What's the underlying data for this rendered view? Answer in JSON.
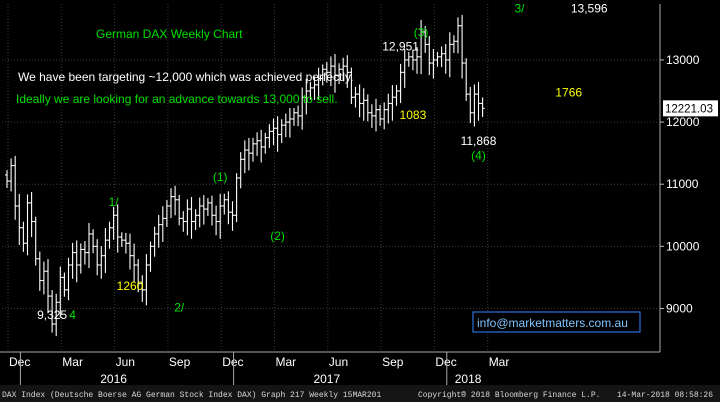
{
  "chart_data": {
    "type": "bar",
    "subtype": "ohlc",
    "frequency": "Weekly",
    "title": "German DAX Weekly Chart",
    "commentary": [
      "We have been targeting ~12,000 which was achieved perfectly.",
      "Ideally we are looking for an advance towards 13,000 to sell."
    ],
    "ylim": [
      8300,
      13900
    ],
    "y_ticks": [
      9000,
      10000,
      11000,
      12000,
      13000
    ],
    "y_tick_labels": [
      "9000",
      "10000",
      "11000",
      "12000",
      "13000"
    ],
    "x_ticks": [
      "Dec",
      "Mar",
      "Jun",
      "Sep",
      "Dec",
      "Mar",
      "Jun",
      "Sep",
      "Dec",
      "Mar"
    ],
    "years": [
      "2016",
      "2017",
      "2018"
    ],
    "last_price": "12221.03",
    "weeks": 117,
    "series": [
      {
        "name": "DAX Index",
        "values": [
          11050,
          11300,
          10650,
          10300,
          10050,
          10700,
          10400,
          9800,
          9450,
          9600,
          9200,
          8750,
          9100,
          9500,
          9300,
          9700,
          9900,
          9700,
          9950,
          9900,
          10200,
          10000,
          9700,
          9850,
          10100,
          10300,
          10500,
          10150,
          10100,
          10050,
          9850,
          9700,
          9400,
          9300,
          9700,
          10000,
          10200,
          10350,
          10450,
          10650,
          10800,
          10750,
          10450,
          10400,
          10600,
          10400,
          10500,
          10650,
          10600,
          10700,
          10500,
          10400,
          10650,
          10750,
          10550,
          10500,
          11100,
          11400,
          11550,
          11500,
          11650,
          11700,
          11600,
          11750,
          11850,
          11900,
          11800,
          11950,
          12000,
          12050,
          12150,
          12100,
          12400,
          12500,
          12550,
          12600,
          12700,
          12850,
          12800,
          12900,
          12750,
          12850,
          12900,
          12800,
          12400,
          12450,
          12300,
          12350,
          12150,
          12100,
          12200,
          12050,
          12200,
          12300,
          12400,
          12500,
          12800,
          13000,
          13050,
          13000,
          13050,
          13450,
          13250,
          12950,
          13000,
          13050,
          13100,
          13000,
          13250,
          13300,
          13550,
          12950,
          12450,
          12150,
          12450,
          12300,
          12221
        ]
      }
    ],
    "annotations": [
      {
        "text": "9,325",
        "x": 11,
        "y": 8830,
        "color": "#ffffff"
      },
      {
        "text": "4",
        "x": 16,
        "y": 8830,
        "color": "#00e000"
      },
      {
        "text": "1/",
        "x": 26,
        "y": 10650,
        "color": "#00e000"
      },
      {
        "text": "1260",
        "x": 30,
        "y": 9300,
        "color": "#ffff00"
      },
      {
        "text": "2/",
        "x": 42,
        "y": 8950,
        "color": "#00e000"
      },
      {
        "text": "(1)",
        "x": 52,
        "y": 11050,
        "color": "#00e000"
      },
      {
        "text": "(2)",
        "x": 66,
        "y": 10100,
        "color": "#00e000"
      },
      {
        "text": "12,951",
        "x": 96,
        "y": 13150,
        "color": "#ffffff"
      },
      {
        "text": "(3)",
        "x": 101,
        "y": 13380,
        "color": "#00e000"
      },
      {
        "text": "1083",
        "x": 99,
        "y": 12050,
        "color": "#ffff00"
      },
      {
        "text": "11,868",
        "x": 115,
        "y": 11630,
        "color": "#ffffff"
      },
      {
        "text": "(4)",
        "x": 115,
        "y": 11400,
        "color": "#00e000"
      },
      {
        "text": "3/",
        "x": 125,
        "y": 13760,
        "color": "#00e000"
      },
      {
        "text": "13,596",
        "x": 142,
        "y": 13760,
        "color": "#ffffff"
      },
      {
        "text": "1766",
        "x": 137,
        "y": 12410,
        "color": "#ffff00"
      }
    ],
    "xlabel": "",
    "ylabel": ""
  },
  "contact": "info@marketmatters.com.au",
  "footer": {
    "left": "DAX Index (Deutsche Boerse AG German Stock Index DAX) Graph 217  Weekly 15MAR201",
    "mid": "Copyright® 2018 Bloomberg Finance L.P.",
    "right": "14-Mar-2018 08:58:26"
  },
  "colors": {
    "background": "#000000",
    "bars": "#ffffff",
    "grid": "#3a3a3a",
    "green": "#00e000",
    "yellow": "#ffff00",
    "contact_border": "#2d6fd9",
    "contact_text": "#7fc4ff"
  }
}
